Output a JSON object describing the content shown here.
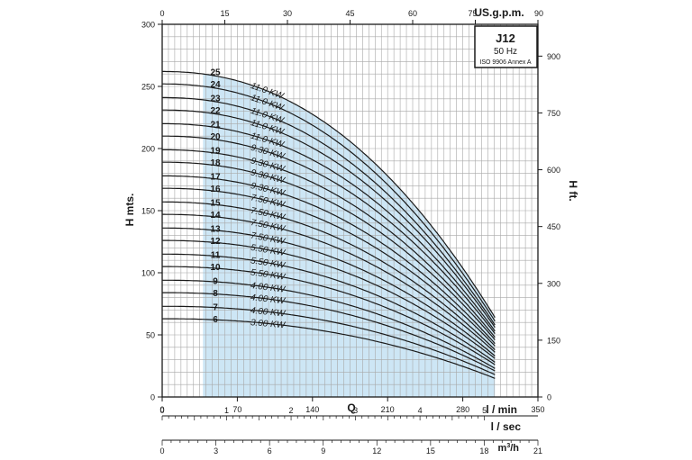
{
  "chart_data": {
    "type": "line",
    "x_axis_bottom": {
      "label": "Q",
      "unit": "l / min",
      "range": [
        0,
        350
      ],
      "ticks": [
        0,
        70,
        140,
        210,
        280,
        350
      ]
    },
    "x_axis_top": {
      "unit": "US.g.p.m.",
      "range": [
        0,
        90
      ],
      "ticks": [
        0,
        15,
        30,
        45,
        60,
        75,
        90
      ]
    },
    "x_axis_lsec": {
      "unit": "l / sec",
      "range": [
        0,
        5.83
      ],
      "ticks": [
        0,
        1,
        2,
        3,
        4,
        5
      ]
    },
    "x_axis_m3h": {
      "unit": "m3/h",
      "range": [
        0,
        21
      ],
      "ticks": [
        0,
        3,
        6,
        9,
        12,
        15,
        18,
        21
      ]
    },
    "y_axis_left": {
      "label": "H mts.",
      "range": [
        0,
        300
      ],
      "ticks": [
        0,
        50,
        100,
        150,
        200,
        250,
        300
      ]
    },
    "y_axis_right": {
      "label": "H ft.",
      "range": [
        0,
        984
      ],
      "ticks": [
        0,
        150,
        300,
        450,
        600,
        750,
        900
      ]
    },
    "grid": true,
    "shaded_region_x": [
      38,
      310
    ],
    "stages": [
      {
        "stage": 25,
        "kw": "11.0 KW",
        "h0": 262,
        "hmax": 64
      },
      {
        "stage": 24,
        "kw": "11.0 KW",
        "h0": 252,
        "hmax": 61
      },
      {
        "stage": 23,
        "kw": "11.0 KW",
        "h0": 241,
        "hmax": 58
      },
      {
        "stage": 22,
        "kw": "11.0 KW",
        "h0": 231,
        "hmax": 56
      },
      {
        "stage": 21,
        "kw": "11.0 KW",
        "h0": 220,
        "hmax": 53
      },
      {
        "stage": 20,
        "kw": "9.30 KW",
        "h0": 210,
        "hmax": 51
      },
      {
        "stage": 19,
        "kw": "9.30 KW",
        "h0": 199,
        "hmax": 48
      },
      {
        "stage": 18,
        "kw": "9.30 KW",
        "h0": 189,
        "hmax": 46
      },
      {
        "stage": 17,
        "kw": "9.30 KW",
        "h0": 178,
        "hmax": 43
      },
      {
        "stage": 16,
        "kw": "7.50 KW",
        "h0": 168,
        "hmax": 41
      },
      {
        "stage": 15,
        "kw": "7.50 KW",
        "h0": 157,
        "hmax": 38
      },
      {
        "stage": 14,
        "kw": "7.50 KW",
        "h0": 147,
        "hmax": 36
      },
      {
        "stage": 13,
        "kw": "7.50 KW",
        "h0": 136,
        "hmax": 33
      },
      {
        "stage": 12,
        "kw": "5.50 KW",
        "h0": 126,
        "hmax": 31
      },
      {
        "stage": 11,
        "kw": "5.50 KW",
        "h0": 115,
        "hmax": 28
      },
      {
        "stage": 10,
        "kw": "5.50 KW",
        "h0": 105,
        "hmax": 26
      },
      {
        "stage": 9,
        "kw": "4.00 KW",
        "h0": 94,
        "hmax": 23
      },
      {
        "stage": 8,
        "kw": "4.00 KW",
        "h0": 84,
        "hmax": 21
      },
      {
        "stage": 7,
        "kw": "4.00 KW",
        "h0": 73,
        "hmax": 18
      },
      {
        "stage": 6,
        "kw": "3.00 KW",
        "h0": 63,
        "hmax": 15
      }
    ],
    "x_end": 310,
    "legend": {
      "title": "J12",
      "freq": "50 Hz",
      "standard": "ISO 9906 Annex A"
    },
    "colors": {
      "curve": "#1a1a1a",
      "shade": "#cde6f5",
      "grid": "#a8a8a8"
    }
  }
}
